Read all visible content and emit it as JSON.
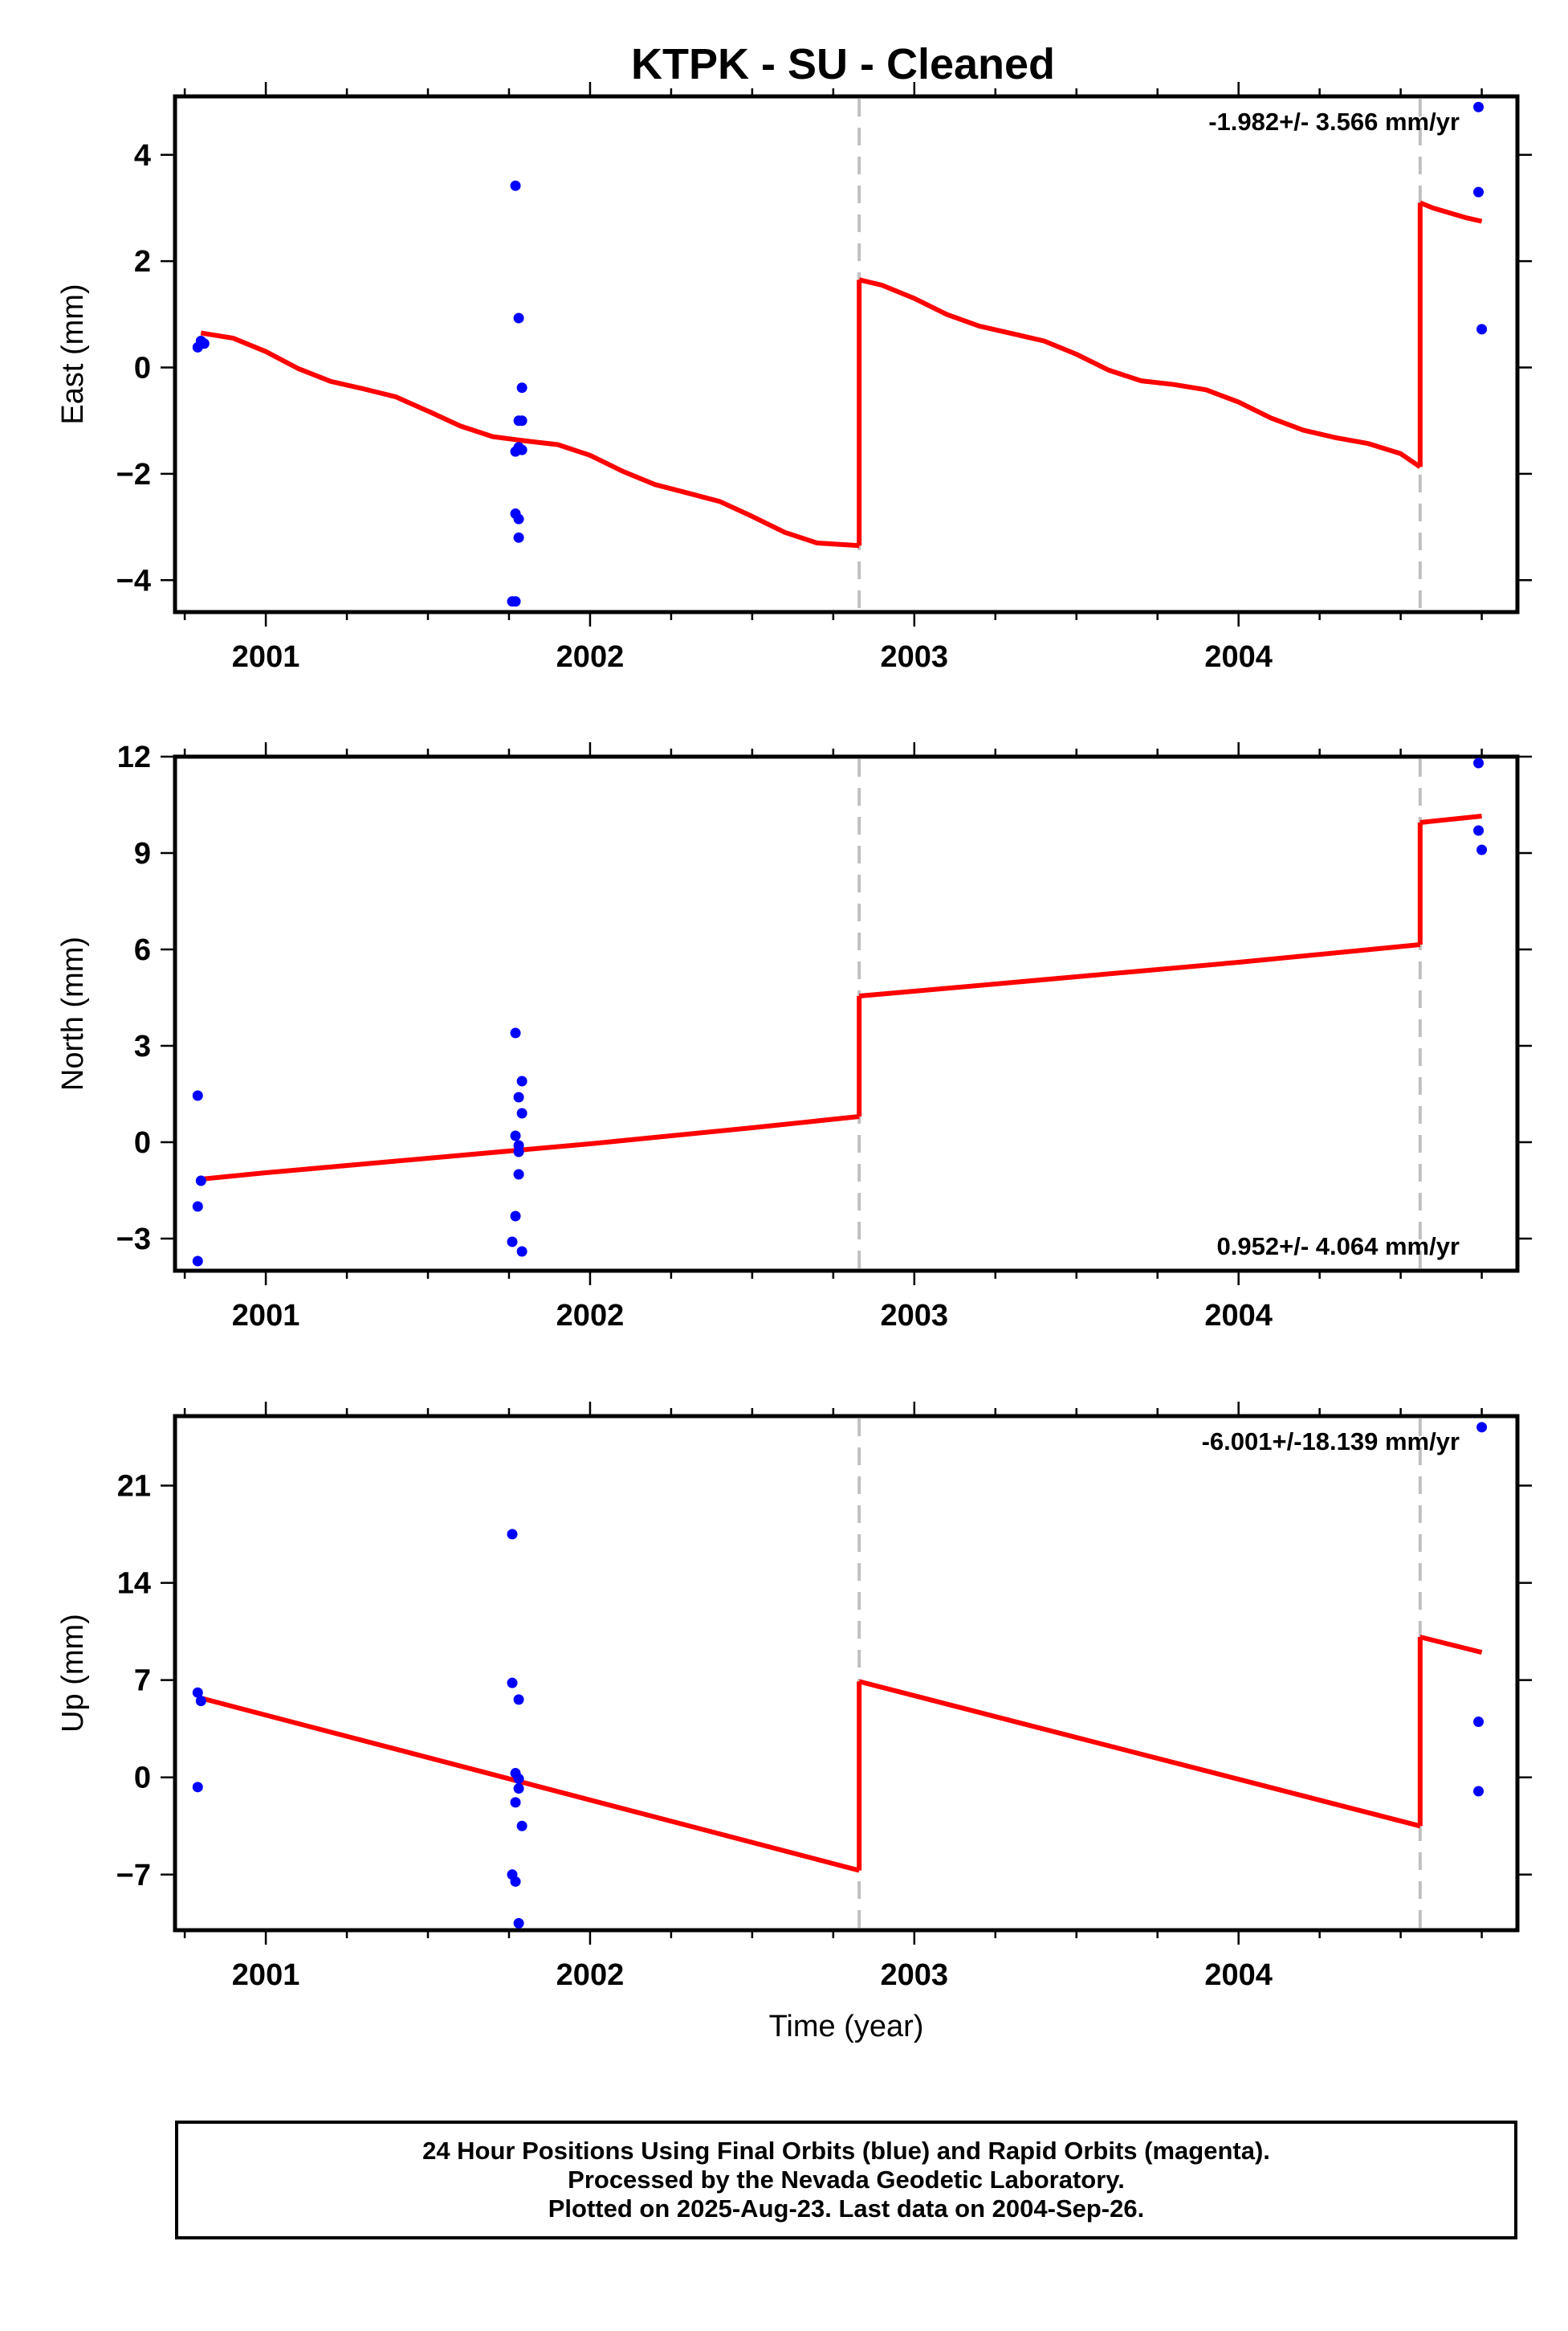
{
  "title": "KTPK  - SU - Cleaned",
  "xlabel": "Time (year)",
  "caption": {
    "line1": "24 Hour Positions Using Final Orbits (blue) and Rapid Orbits (magenta).",
    "line2": "Processed by the Nevada Geodetic Laboratory.",
    "line3": "Plotted on 2025-Aug-23. Last data on 2004-Sep-26."
  },
  "colors": {
    "final_orbits": "#0000ff",
    "model": "#ff0000",
    "steps": "#c0c0c0"
  },
  "chart_data": [
    {
      "type": "scatter",
      "panel": "east",
      "ylabel": "East (mm)",
      "rate": "-1.982+/- 3.566 mm/yr",
      "rate_position": "top-right",
      "xlim": [
        2000.72,
        2004.86
      ],
      "ylim": [
        -4.6,
        5.1
      ],
      "xticks": [
        2001,
        2002,
        2003,
        2004
      ],
      "yticks": [
        -4,
        -2,
        0,
        2,
        4
      ],
      "steps": [
        2002.83,
        2004.56
      ],
      "series": [
        {
          "kind": "points",
          "x": [
            2000.79,
            2000.8,
            2000.81,
            2001.77,
            2001.78,
            2001.78,
            2001.79,
            2001.78,
            2001.79,
            2001.77,
            2001.79,
            2001.77,
            2001.78,
            2001.78,
            2001.77,
            2001.76,
            2004.74,
            2004.74,
            2004.75
          ],
          "y": [
            0.38,
            0.5,
            0.45,
            3.42,
            0.93,
            -1.0,
            -1.0,
            -1.5,
            -0.38,
            -1.58,
            -1.55,
            -2.75,
            -2.85,
            -3.2,
            -4.4,
            -4.4,
            4.9,
            3.3,
            0.72
          ]
        },
        {
          "kind": "model",
          "segments": [
            {
              "x": [
                2000.8,
                2000.9,
                2001.0,
                2001.1,
                2001.2,
                2001.3,
                2001.4,
                2001.5,
                2001.6,
                2001.7,
                2001.8,
                2001.9,
                2002.0,
                2002.1,
                2002.2,
                2002.3,
                2002.4,
                2002.5,
                2002.6,
                2002.7,
                2002.83
              ],
              "y": [
                0.65,
                0.55,
                0.3,
                -0.02,
                -0.26,
                -0.4,
                -0.55,
                -0.82,
                -1.1,
                -1.3,
                -1.38,
                -1.45,
                -1.65,
                -1.95,
                -2.2,
                -2.36,
                -2.52,
                -2.8,
                -3.1,
                -3.3,
                -3.35
              ]
            },
            {
              "x": [
                2002.83,
                2002.9,
                2003.0,
                2003.1,
                2003.2,
                2003.3,
                2003.4,
                2003.5,
                2003.6,
                2003.7,
                2003.8,
                2003.9,
                2004.0,
                2004.1,
                2004.2,
                2004.3,
                2004.4,
                2004.5,
                2004.56
              ],
              "y": [
                1.65,
                1.55,
                1.3,
                1.0,
                0.78,
                0.64,
                0.5,
                0.25,
                -0.05,
                -0.25,
                -0.32,
                -0.42,
                -0.65,
                -0.95,
                -1.18,
                -1.32,
                -1.43,
                -1.62,
                -1.87
              ]
            },
            {
              "x": [
                2004.56,
                2004.6,
                2004.7,
                2004.75
              ],
              "y": [
                3.1,
                3.0,
                2.82,
                2.75
              ]
            }
          ]
        }
      ]
    },
    {
      "type": "scatter",
      "panel": "north",
      "ylabel": "North (mm)",
      "rate": "0.952+/- 4.064 mm/yr",
      "rate_position": "bottom-right",
      "xlim": [
        2000.72,
        2004.86
      ],
      "ylim": [
        -4,
        12
      ],
      "xticks": [
        2001,
        2002,
        2003,
        2004
      ],
      "yticks": [
        -3,
        0,
        3,
        6,
        9,
        12
      ],
      "steps": [
        2002.83,
        2004.56
      ],
      "series": [
        {
          "kind": "points",
          "x": [
            2000.79,
            2000.8,
            2000.79,
            2000.79,
            2001.77,
            2001.79,
            2001.78,
            2001.79,
            2001.77,
            2001.78,
            2001.78,
            2001.77,
            2001.78,
            2001.76,
            2001.79,
            2004.74,
            2004.74,
            2004.75
          ],
          "y": [
            1.45,
            -1.2,
            -2.0,
            -3.7,
            3.4,
            1.9,
            1.4,
            0.9,
            0.2,
            -0.3,
            -1.0,
            -2.3,
            -0.1,
            -3.1,
            -3.4,
            11.8,
            9.7,
            9.1
          ]
        },
        {
          "kind": "model",
          "segments": [
            {
              "x": [
                2000.8,
                2001.0,
                2001.5,
                2002.0,
                2002.5,
                2002.83
              ],
              "y": [
                -1.15,
                -0.95,
                -0.5,
                -0.05,
                0.45,
                0.8
              ]
            },
            {
              "x": [
                2002.83,
                2003.0,
                2003.5,
                2004.0,
                2004.56
              ],
              "y": [
                4.55,
                4.7,
                5.15,
                5.6,
                6.15
              ]
            },
            {
              "x": [
                2004.56,
                2004.75
              ],
              "y": [
                9.95,
                10.15
              ]
            }
          ]
        }
      ]
    },
    {
      "type": "scatter",
      "panel": "up",
      "ylabel": "Up (mm)",
      "rate": "-6.001+/-18.139 mm/yr",
      "rate_position": "top-right",
      "xlim": [
        2000.72,
        2004.86
      ],
      "ylim": [
        -11,
        26
      ],
      "xticks": [
        2001,
        2002,
        2003,
        2004
      ],
      "yticks": [
        -7,
        0,
        7,
        14,
        21
      ],
      "steps": [
        2002.83,
        2004.56
      ],
      "series": [
        {
          "kind": "points",
          "x": [
            2000.79,
            2000.8,
            2000.79,
            2001.76,
            2001.76,
            2001.78,
            2001.77,
            2001.78,
            2001.78,
            2001.77,
            2001.79,
            2001.76,
            2001.77,
            2001.78,
            2004.75,
            2004.74,
            2004.74
          ],
          "y": [
            6.1,
            5.5,
            -0.7,
            17.5,
            6.8,
            5.6,
            0.3,
            -0.1,
            -0.8,
            -1.8,
            -3.5,
            -7.0,
            -7.5,
            -10.5,
            25.2,
            4.0,
            -1.0
          ]
        },
        {
          "kind": "model",
          "segments": [
            {
              "x": [
                2000.8,
                2002.83
              ],
              "y": [
                5.7,
                -6.7
              ]
            },
            {
              "x": [
                2002.83,
                2004.56
              ],
              "y": [
                6.9,
                -3.5
              ]
            },
            {
              "x": [
                2004.56,
                2004.75
              ],
              "y": [
                10.1,
                9.0
              ]
            }
          ]
        }
      ]
    }
  ]
}
